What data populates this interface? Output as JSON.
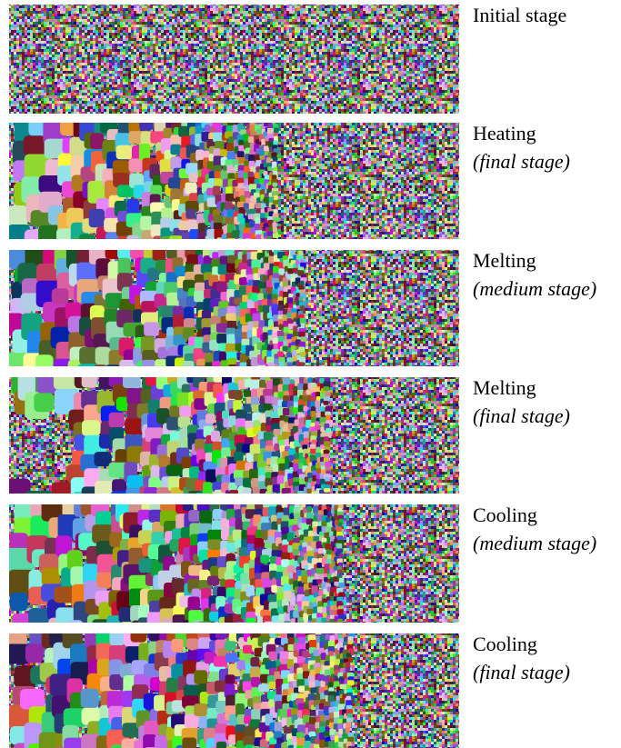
{
  "panels": [
    {
      "title": "Initial stage"
    },
    {
      "title": "Heating",
      "subtitle": "(final stage)"
    },
    {
      "title": "Melting",
      "subtitle": "(medium stage)"
    },
    {
      "title": "Melting",
      "subtitle": "(final stage)"
    },
    {
      "title": "Cooling",
      "subtitle": "(medium stage)"
    },
    {
      "title": "Cooling",
      "subtitle": "(final stage)"
    }
  ]
}
